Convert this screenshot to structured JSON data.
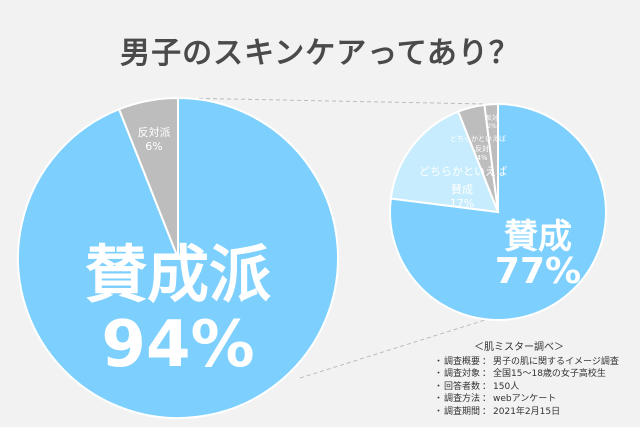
{
  "title": "男子のスキンケアってあり？",
  "colors": {
    "agree": "#7dd0fd",
    "neutral": "#c6ecfd",
    "disagree": "#bdbdbd",
    "background": "#f2f2f2",
    "connector": "#bbbbbb"
  },
  "chart_data": [
    {
      "type": "pie",
      "name": "main-pie",
      "start_angle_deg": 0,
      "direction": "clockwise",
      "slices": [
        {
          "label": "賛成派",
          "value": 94,
          "value_text": "94%",
          "color": "#7dd0fd"
        },
        {
          "label": "反対派",
          "value": 6,
          "value_text": "6%",
          "color": "#bdbdbd"
        }
      ]
    },
    {
      "type": "pie",
      "name": "detail-pie",
      "start_angle_deg": 0,
      "direction": "clockwise",
      "slices": [
        {
          "label": "賛成",
          "value": 77,
          "value_text": "77%",
          "color": "#7dd0fd"
        },
        {
          "label": "どちらかといえば賛成",
          "value": 17,
          "value_text": "17%",
          "color": "#c6ecfd"
        },
        {
          "label": "どちらかといえば反対",
          "value": 4,
          "value_text": "4%",
          "color": "#bdbdbd"
        },
        {
          "label": "反対",
          "value": 2,
          "value_text": "2%",
          "color": "#bdbdbd"
        }
      ]
    }
  ],
  "labels": {
    "main_agree": "賛成派",
    "main_agree_pct": "94%",
    "main_disagree": "反対派",
    "main_disagree_pct": "6%",
    "detail_agree": "賛成",
    "detail_agree_pct": "77%",
    "detail_somewhat_agree_a": "どちらかといえば",
    "detail_somewhat_agree_b": "賛成",
    "detail_somewhat_agree_pct": "17%",
    "detail_somewhat_disagree_a": "どちらかといえば",
    "detail_somewhat_disagree_b": "反対",
    "detail_somewhat_disagree_pct": "4%",
    "detail_disagree": "反対",
    "detail_disagree_pct": "2%"
  },
  "survey": {
    "heading": "＜肌ミスター調べ＞",
    "bullet": "・",
    "items": [
      {
        "key": "調査概要",
        "value": "男子の肌に関するイメージ調査"
      },
      {
        "key": "調査対象",
        "value": "全国15～18歳の女子高校生"
      },
      {
        "key": "回答者数",
        "value": "150人"
      },
      {
        "key": "調査方法",
        "value": "webアンケート"
      },
      {
        "key": "調査期間",
        "value": "2021年2月15日"
      }
    ]
  }
}
